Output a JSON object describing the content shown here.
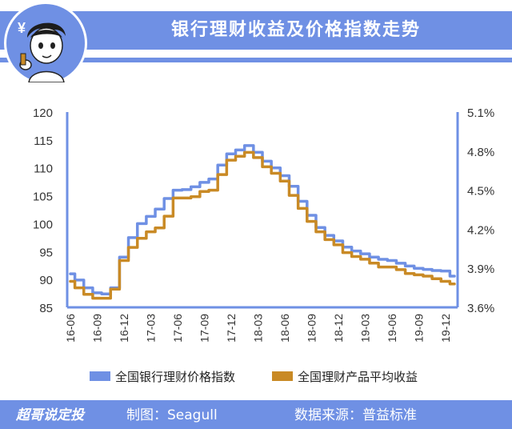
{
  "header": {
    "title": "银行理财收益及价格指数走势",
    "avatar_icon": "cartoon-avatar-icon"
  },
  "footer": {
    "brand": "超哥说定投",
    "author": "制图：Seagull",
    "source": "数据来源：普益标准"
  },
  "colors": {
    "accent": "#6f90e4",
    "index_line": "#6f90e4",
    "yield_line": "#c98a25"
  },
  "chart_data": {
    "type": "line",
    "x": [
      "16-06",
      "16-07",
      "16-08",
      "16-09",
      "16-10",
      "16-11",
      "16-12",
      "17-01",
      "17-02",
      "17-03",
      "17-04",
      "17-05",
      "17-06",
      "17-07",
      "17-08",
      "17-09",
      "17-10",
      "17-11",
      "17-12",
      "18-01",
      "18-02",
      "18-03",
      "18-04",
      "18-05",
      "18-06",
      "18-07",
      "18-08",
      "18-09",
      "18-10",
      "18-11",
      "18-12",
      "19-01",
      "19-02",
      "19-03",
      "19-04",
      "19-05",
      "19-06",
      "19-07",
      "19-08",
      "19-09",
      "19-10",
      "19-11",
      "19-12",
      "20-01"
    ],
    "x_tick_labels": [
      "16-06",
      "16-09",
      "16-12",
      "17-03",
      "17-06",
      "17-09",
      "17-12",
      "18-03",
      "18-06",
      "18-09",
      "18-12",
      "19-03",
      "19-06",
      "19-09",
      "19-12"
    ],
    "series": [
      {
        "name": "全国银行理财价格指数",
        "axis": "left",
        "values": [
          91.0,
          89.9,
          88.5,
          87.6,
          87.4,
          88.5,
          94.0,
          97.5,
          100.0,
          101.3,
          102.6,
          104.5,
          106.0,
          106.1,
          106.6,
          107.4,
          108.0,
          110.5,
          112.5,
          113.2,
          114.0,
          112.8,
          111.2,
          110.0,
          108.6,
          106.7,
          104.0,
          101.5,
          99.3,
          97.9,
          96.9,
          95.8,
          95.1,
          94.6,
          94.0,
          93.6,
          93.4,
          92.9,
          92.4,
          92.0,
          91.8,
          91.6,
          91.5,
          90.6
        ]
      },
      {
        "name": "全国理财产品平均收益",
        "axis": "right",
        "values": [
          3.8,
          3.75,
          3.7,
          3.67,
          3.67,
          3.74,
          3.96,
          4.06,
          4.13,
          4.18,
          4.21,
          4.3,
          4.44,
          4.44,
          4.45,
          4.49,
          4.5,
          4.62,
          4.73,
          4.76,
          4.79,
          4.75,
          4.68,
          4.63,
          4.57,
          4.46,
          4.36,
          4.26,
          4.18,
          4.12,
          4.08,
          4.02,
          3.99,
          3.97,
          3.94,
          3.91,
          3.91,
          3.89,
          3.86,
          3.85,
          3.84,
          3.82,
          3.8,
          3.78
        ]
      }
    ],
    "y_left": {
      "ticks": [
        "120",
        "115",
        "110",
        "105",
        "100",
        "95",
        "90",
        "85"
      ],
      "ylim": [
        85,
        120
      ]
    },
    "y_right": {
      "ticks": [
        "5.1%",
        "4.8%",
        "4.5%",
        "4.2%",
        "3.9%",
        "3.6%"
      ],
      "ylim": [
        3.6,
        5.1
      ]
    },
    "grid": false,
    "legend_position": "bottom"
  }
}
